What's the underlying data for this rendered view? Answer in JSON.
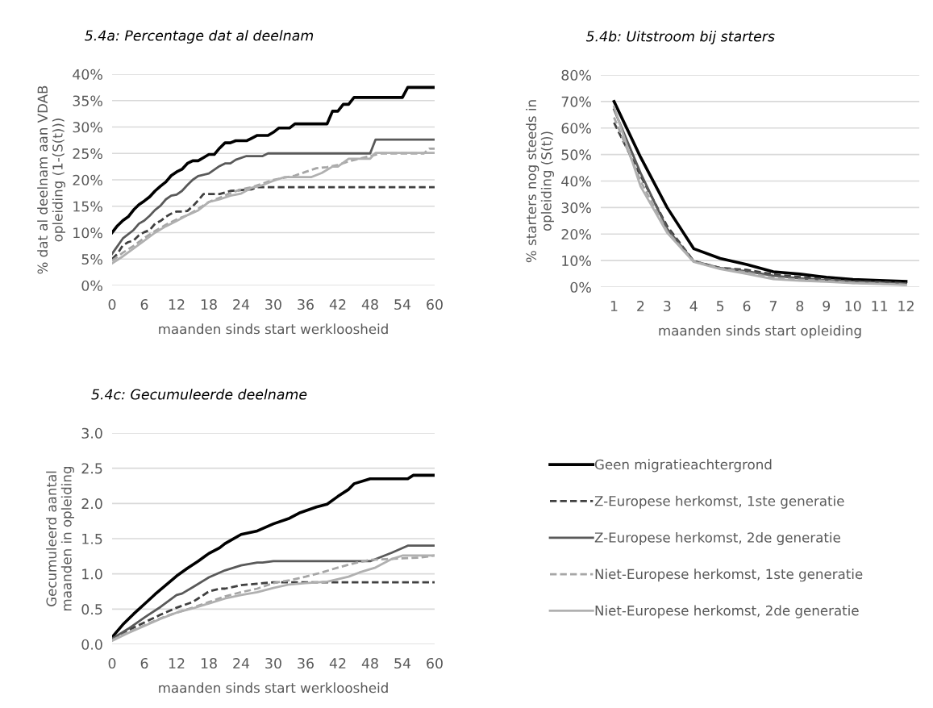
{
  "chart_data": [
    {
      "type": "line",
      "title": "5.4a: Percentage dat al deelnam",
      "xlabel": "maanden sinds start werkloosheid",
      "ylabel": "% dat al deelnam aan VDAB\nopleiding (1-(S(t)))",
      "xlim": [
        0,
        60
      ],
      "xticks": [
        0,
        6,
        12,
        18,
        24,
        30,
        36,
        42,
        48,
        54,
        60
      ],
      "ylim": [
        0,
        40
      ],
      "yticks": [
        {
          "value": 0,
          "label": "0%"
        },
        {
          "value": 5,
          "label": "5%"
        },
        {
          "value": 10,
          "label": "10%"
        },
        {
          "value": 15,
          "label": "15%"
        },
        {
          "value": 20,
          "label": "20%"
        },
        {
          "value": 25,
          "label": "25%"
        },
        {
          "value": 30,
          "label": "30%"
        },
        {
          "value": 35,
          "label": "35%"
        },
        {
          "value": 40,
          "label": "40%"
        }
      ],
      "grid": "y",
      "series": [
        {
          "color": "#000000",
          "line_style": "solid",
          "x": [
            0,
            1,
            2,
            3,
            4,
            5,
            6,
            7,
            8,
            9,
            10,
            11,
            12,
            13,
            14,
            15,
            16,
            17,
            18,
            19,
            20,
            21,
            22,
            23,
            25,
            26,
            27,
            29,
            30,
            31,
            33,
            34,
            40,
            41,
            42,
            43,
            44,
            45,
            54,
            55,
            60
          ],
          "values": [
            10,
            11.3,
            12.3,
            13,
            14.3,
            15.3,
            16,
            16.8,
            17.9,
            18.8,
            19.6,
            20.8,
            21.5,
            22,
            23.1,
            23.6,
            23.6,
            24.2,
            24.8,
            24.8,
            26,
            27,
            27,
            27.4,
            27.4,
            27.9,
            28.4,
            28.4,
            29,
            29.8,
            29.8,
            30.6,
            30.6,
            33,
            33,
            34.3,
            34.3,
            35.6,
            35.6,
            37.5,
            37.5
          ]
        },
        {
          "color": "#404040",
          "line_style": "dashed",
          "x": [
            0,
            1,
            2,
            3,
            4,
            5,
            6,
            7,
            8,
            9,
            10,
            11,
            12,
            13,
            14,
            15,
            16,
            17,
            20,
            22,
            26,
            27,
            60
          ],
          "values": [
            5,
            6,
            7.6,
            8.2,
            8.5,
            9.5,
            10.1,
            10.5,
            11.7,
            12.2,
            13,
            13.6,
            14,
            14,
            14.1,
            15,
            16.1,
            17.3,
            17.3,
            17.9,
            18.2,
            18.6,
            18.6
          ]
        },
        {
          "color": "#595959",
          "line_style": "solid",
          "x": [
            0,
            2,
            4,
            5,
            6,
            7,
            8,
            9,
            10,
            11,
            12,
            13,
            14,
            15,
            16,
            18,
            20,
            21,
            22,
            23,
            25,
            28,
            29,
            48,
            49,
            60
          ],
          "values": [
            6,
            8.9,
            10.5,
            11.7,
            12.3,
            13.2,
            14.3,
            15.1,
            16.3,
            17,
            17.2,
            17.9,
            19,
            20,
            20.7,
            21.2,
            22.6,
            23.1,
            23.1,
            23.8,
            24.5,
            24.5,
            25,
            25,
            27.6,
            27.6
          ]
        },
        {
          "color": "#a6a6a6",
          "line_style": "dashed",
          "x": [
            0,
            2,
            4,
            6,
            8,
            10,
            12,
            14,
            16,
            18,
            20,
            22,
            24,
            26,
            28,
            30,
            32,
            34,
            36,
            38,
            40,
            42,
            44,
            46,
            48,
            50,
            58,
            59,
            60
          ],
          "values": [
            4.7,
            6.2,
            7.5,
            9,
            10.3,
            11.5,
            12.5,
            13.3,
            14.5,
            15.8,
            16.6,
            17.5,
            18.2,
            18.6,
            19.3,
            20,
            20.4,
            20.8,
            21.5,
            22.2,
            22.4,
            22.8,
            23.5,
            24,
            24.5,
            25,
            25,
            25.9,
            25.9
          ]
        },
        {
          "color": "#b0b0b0",
          "line_style": "solid",
          "x": [
            0,
            2,
            4,
            6,
            8,
            10,
            12,
            14,
            16,
            18,
            20,
            22,
            24,
            26,
            28,
            30,
            32,
            37,
            39,
            41,
            42,
            44,
            48,
            49,
            60
          ],
          "values": [
            4.2,
            5.5,
            7,
            8.5,
            10,
            11.2,
            12.2,
            13.3,
            14.2,
            15.8,
            16.3,
            17,
            17.4,
            18.5,
            19,
            19.8,
            20.5,
            20.5,
            21.3,
            22.5,
            22.5,
            24,
            24,
            25.1,
            25.1
          ]
        }
      ]
    },
    {
      "type": "line",
      "title": "5.4b: Uitstroom bij starters",
      "xlabel": "maanden sinds start opleiding",
      "ylabel": "% starters nog steeds in\nopleiding (S(t))",
      "categories": [
        "1",
        "2",
        "3",
        "4",
        "5",
        "6",
        "7",
        "8",
        "9",
        "10",
        "11",
        "12"
      ],
      "ylim": [
        0,
        80
      ],
      "yticks": [
        {
          "value": 0,
          "label": "0%"
        },
        {
          "value": 10,
          "label": "10%"
        },
        {
          "value": 20,
          "label": "20%"
        },
        {
          "value": 30,
          "label": "30%"
        },
        {
          "value": 40,
          "label": "40%"
        },
        {
          "value": 50,
          "label": "50%"
        },
        {
          "value": 60,
          "label": "60%"
        },
        {
          "value": 70,
          "label": "70%"
        },
        {
          "value": 80,
          "label": "80%"
        }
      ],
      "grid": "y",
      "series": [
        {
          "color": "#000000",
          "line_style": "solid",
          "values": [
            70,
            49,
            30,
            14.5,
            10.8,
            8.5,
            5.8,
            4.9,
            3.7,
            2.9,
            2.5,
            2.1
          ]
        },
        {
          "color": "#404040",
          "line_style": "dashed",
          "values": [
            62,
            42,
            23,
            9.8,
            7.2,
            6.5,
            4.8,
            3.8,
            3,
            2.2,
            1.9,
            1.5
          ]
        },
        {
          "color": "#595959",
          "line_style": "solid",
          "values": [
            67,
            43,
            22,
            9.8,
            7.2,
            6,
            4.3,
            3.3,
            2.6,
            2,
            1.7,
            1.3
          ]
        },
        {
          "color": "#a6a6a6",
          "line_style": "dashed",
          "values": [
            64,
            40,
            21,
            9.7,
            7,
            5.5,
            3.5,
            2.8,
            2.3,
            1.6,
            1.3,
            0.9
          ]
        },
        {
          "color": "#b0b0b0",
          "line_style": "solid",
          "values": [
            68,
            38,
            20.5,
            9.5,
            6.8,
            5,
            3,
            2.4,
            2,
            1.5,
            1.2,
            0.8
          ]
        }
      ]
    },
    {
      "type": "line",
      "title": "5.4c: Gecumuleerde deelname",
      "xlabel": "maanden sinds start werkloosheid",
      "ylabel": "Gecumuleerd aantal\nmaanden in opleiding",
      "xlim": [
        0,
        60
      ],
      "xticks": [
        0,
        6,
        12,
        18,
        24,
        30,
        36,
        42,
        48,
        54,
        60
      ],
      "ylim": [
        0,
        3
      ],
      "yticks": [
        {
          "value": 0,
          "label": "0.0"
        },
        {
          "value": 0.5,
          "label": "0.5"
        },
        {
          "value": 1,
          "label": "1.0"
        },
        {
          "value": 1.5,
          "label": "1.5"
        },
        {
          "value": 2,
          "label": "2.0"
        },
        {
          "value": 2.5,
          "label": "2.5"
        },
        {
          "value": 3,
          "label": "3.0"
        }
      ],
      "grid": "y",
      "legend": "right",
      "series": [
        {
          "name": "Geen migratieachtergrond",
          "color": "#000000",
          "line_style": "solid",
          "x": [
            0,
            2,
            4,
            6,
            8,
            10,
            12,
            14,
            16,
            18,
            20,
            21,
            24,
            27,
            30,
            33,
            35,
            38,
            40,
            42,
            44,
            45,
            48,
            55,
            56,
            60
          ],
          "values": [
            0.1,
            0.28,
            0.43,
            0.57,
            0.71,
            0.84,
            0.97,
            1.08,
            1.18,
            1.29,
            1.37,
            1.43,
            1.56,
            1.61,
            1.71,
            1.79,
            1.87,
            1.95,
            1.99,
            2.1,
            2.2,
            2.28,
            2.35,
            2.35,
            2.4,
            2.4
          ]
        },
        {
          "name": "Z-Europese herkomst, 1ste generatie",
          "color": "#404040",
          "line_style": "dashed",
          "x": [
            0,
            3,
            6,
            9,
            12,
            15,
            16,
            18,
            20,
            21,
            24,
            27,
            30,
            60
          ],
          "values": [
            0.07,
            0.2,
            0.31,
            0.42,
            0.52,
            0.6,
            0.65,
            0.75,
            0.79,
            0.79,
            0.84,
            0.86,
            0.88,
            0.88
          ]
        },
        {
          "name": "Z-Europese herkomst, 2de generatie",
          "color": "#595959",
          "line_style": "solid",
          "x": [
            0,
            3,
            6,
            9,
            12,
            13,
            15,
            18,
            21,
            24,
            27,
            28,
            30,
            48,
            52,
            55,
            60
          ],
          "values": [
            0.08,
            0.22,
            0.38,
            0.53,
            0.7,
            0.72,
            0.81,
            0.95,
            1.05,
            1.12,
            1.16,
            1.16,
            1.18,
            1.18,
            1.3,
            1.4,
            1.4
          ]
        },
        {
          "name": "Niet-Europese herkomst, 1ste generatie",
          "color": "#a6a6a6",
          "line_style": "dashed",
          "x": [
            0,
            3,
            6,
            9,
            12,
            15,
            18,
            21,
            24,
            27,
            30,
            33,
            36,
            39,
            42,
            45,
            48,
            51,
            54,
            57,
            60
          ],
          "values": [
            0.06,
            0.17,
            0.27,
            0.37,
            0.45,
            0.52,
            0.6,
            0.68,
            0.74,
            0.79,
            0.87,
            0.91,
            0.96,
            1.02,
            1.09,
            1.15,
            1.2,
            1.21,
            1.22,
            1.23,
            1.26
          ]
        },
        {
          "name": "Niet-Europese herkomst, 2de generatie",
          "color": "#b0b0b0",
          "line_style": "solid",
          "x": [
            0,
            3,
            6,
            9,
            12,
            15,
            18,
            21,
            24,
            27,
            30,
            33,
            36,
            40,
            44,
            46,
            49,
            52,
            54,
            60
          ],
          "values": [
            0.05,
            0.16,
            0.26,
            0.36,
            0.45,
            0.51,
            0.58,
            0.65,
            0.7,
            0.74,
            0.8,
            0.85,
            0.87,
            0.89,
            0.96,
            1.02,
            1.09,
            1.21,
            1.26,
            1.26
          ]
        }
      ]
    }
  ]
}
